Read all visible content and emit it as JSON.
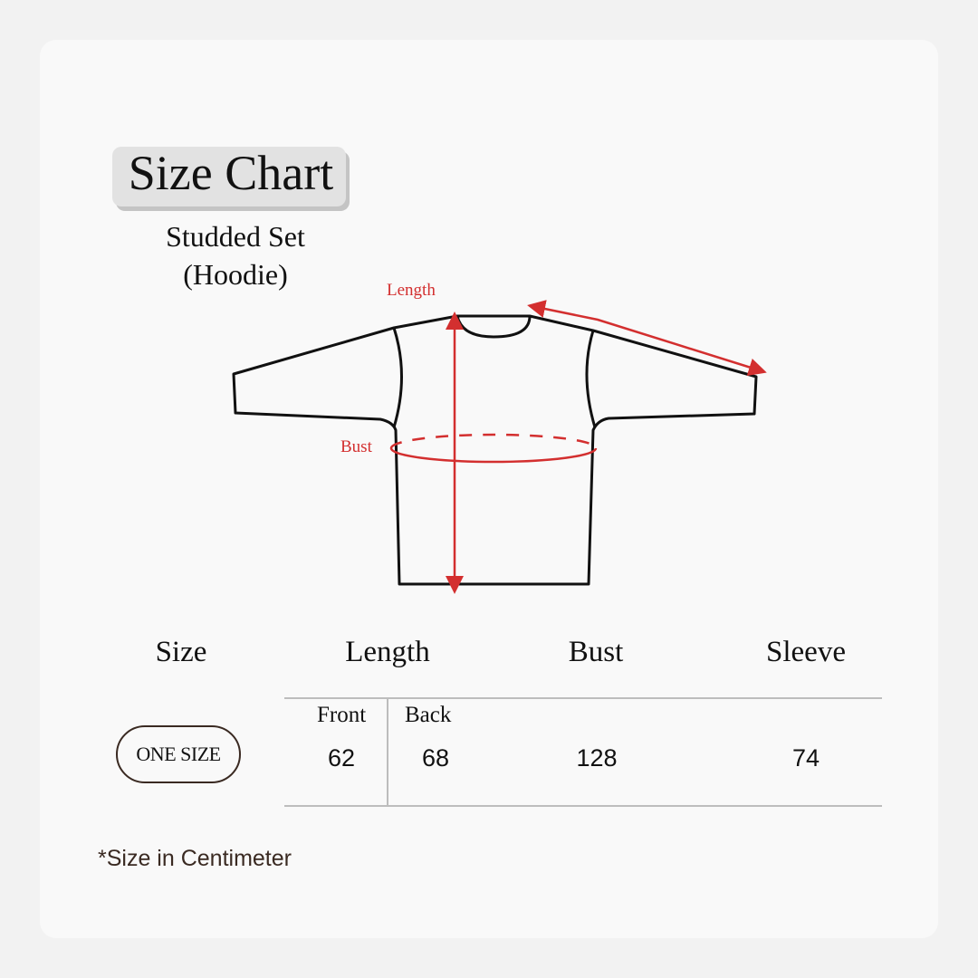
{
  "header": {
    "title": "Size Chart",
    "subtitle_line1": "Studded Set",
    "subtitle_line2": "(Hoodie)"
  },
  "diagram": {
    "length_label": "Length",
    "bust_label": "Bust",
    "accent_color": "#d32f2f"
  },
  "table": {
    "columns": [
      "Size",
      "Length",
      "Bust",
      "Sleeve"
    ],
    "length_sub": [
      "Front",
      "Back"
    ],
    "rows": [
      {
        "size": "ONE SIZE",
        "front": "62",
        "back": "68",
        "bust": "128",
        "sleeve": "74"
      }
    ]
  },
  "footnote": "*Size in Centimeter"
}
